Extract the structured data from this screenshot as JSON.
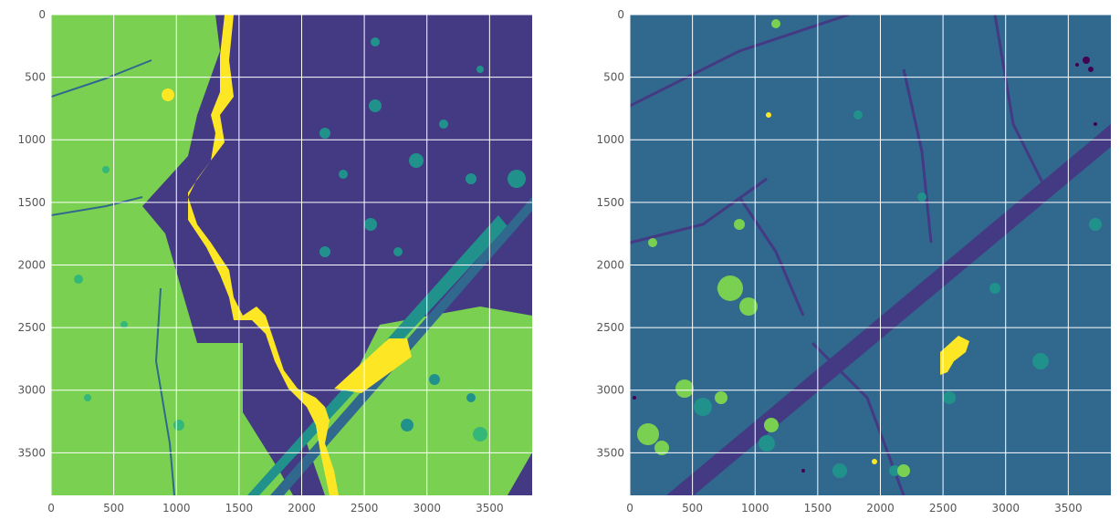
{
  "figure": {
    "background": "#ffffff"
  },
  "colors": {
    "purple": "#443983",
    "blue": "#31688e",
    "teal": "#21918c",
    "green_blue": "#35b779",
    "light_green": "#7ad151",
    "yellow": "#fde725",
    "dark": "#440154",
    "grid": "#ffffff",
    "tick_text": "#555555"
  },
  "chart_data": [
    {
      "type": "heatmap",
      "panel": "left",
      "title": "",
      "xlabel": "",
      "ylabel": "",
      "x_ticks": [
        0,
        500,
        1000,
        1500,
        2000,
        2500,
        3000,
        3500
      ],
      "y_ticks": [
        0,
        500,
        1000,
        1500,
        2000,
        2500,
        3000,
        3500
      ],
      "xlim": [
        0,
        3840
      ],
      "ylim": [
        3840,
        0
      ],
      "grid": true,
      "colormap": "viridis",
      "classes_shown": [
        "purple",
        "blue",
        "teal",
        "green_blue",
        "light_green",
        "yellow"
      ]
    },
    {
      "type": "heatmap",
      "panel": "right",
      "title": "",
      "xlabel": "",
      "ylabel": "",
      "x_ticks": [
        0,
        500,
        1000,
        1500,
        2000,
        2500,
        3000,
        3500
      ],
      "y_ticks": [
        0,
        500,
        1000,
        1500,
        2000,
        2500,
        3000,
        3500
      ],
      "xlim": [
        0,
        3840
      ],
      "ylim": [
        3840,
        0
      ],
      "grid": true,
      "colormap": "viridis",
      "classes_shown": [
        "dark",
        "purple",
        "blue",
        "teal",
        "green_blue",
        "light_green",
        "yellow"
      ]
    }
  ]
}
